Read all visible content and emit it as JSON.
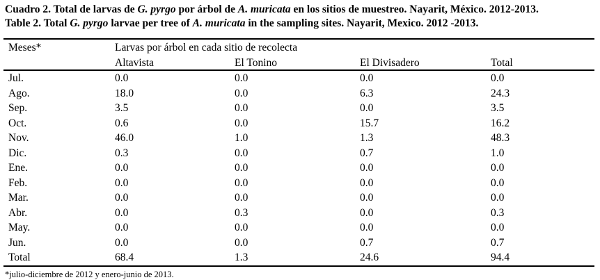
{
  "caption": {
    "line1": [
      {
        "text": "Cuadro 2. Total de larvas de ",
        "italic": false
      },
      {
        "text": "G. pyrgo",
        "italic": true
      },
      {
        "text": " por árbol de ",
        "italic": false
      },
      {
        "text": "A. muricata",
        "italic": true
      },
      {
        "text": " en los sitios de muestreo. Nayarit, México. 2012-2013.",
        "italic": false
      }
    ],
    "line2": [
      {
        "text": "Table 2. Total ",
        "italic": false
      },
      {
        "text": "G. pyrgo",
        "italic": true
      },
      {
        "text": " larvae per tree of ",
        "italic": false
      },
      {
        "text": "A. muricata",
        "italic": true
      },
      {
        "text": " in the sampling sites. Nayarit, Mexico. 2012 -2013.",
        "italic": false
      }
    ]
  },
  "table": {
    "col1_header": "Meses*",
    "group_header": "Larvas por árbol en cada sitio de recolecta",
    "site_headers": [
      "Altavista",
      "El Tonino",
      "El Divisadero",
      "Total"
    ],
    "rows": [
      {
        "month": "Jul.",
        "values": [
          "0.0",
          "0.0",
          "0.0",
          "0.0"
        ]
      },
      {
        "month": "Ago.",
        "values": [
          "18.0",
          "0.0",
          "6.3",
          "24.3"
        ]
      },
      {
        "month": "Sep.",
        "values": [
          "3.5",
          "0.0",
          "0.0",
          "3.5"
        ]
      },
      {
        "month": "Oct.",
        "values": [
          "0.6",
          "0.0",
          "15.7",
          "16.2"
        ]
      },
      {
        "month": "Nov.",
        "values": [
          "46.0",
          "1.0",
          "1.3",
          "48.3"
        ]
      },
      {
        "month": "Dic.",
        "values": [
          "0.3",
          "0.0",
          "0.7",
          "1.0"
        ]
      },
      {
        "month": "Ene.",
        "values": [
          "0.0",
          "0.0",
          "0.0",
          "0.0"
        ]
      },
      {
        "month": "Feb.",
        "values": [
          "0.0",
          "0.0",
          "0.0",
          "0.0"
        ]
      },
      {
        "month": "Mar.",
        "values": [
          "0.0",
          "0.0",
          "0.0",
          "0.0"
        ]
      },
      {
        "month": "Abr.",
        "values": [
          "0.0",
          "0.3",
          "0.0",
          "0.3"
        ]
      },
      {
        "month": "May.",
        "values": [
          "0.0",
          "0.0",
          "0.0",
          "0.0"
        ]
      },
      {
        "month": "Jun.",
        "values": [
          "0.0",
          "0.0",
          "0.7",
          "0.7"
        ]
      },
      {
        "month": "Total",
        "values": [
          "68.4",
          "1.3",
          "24.6",
          "94.4"
        ]
      }
    ]
  },
  "footnote": "*julio-diciembre de 2012 y enero-junio de 2013.",
  "colors": {
    "text": "#000000",
    "background": "#ffffff",
    "rule": "#000000"
  }
}
